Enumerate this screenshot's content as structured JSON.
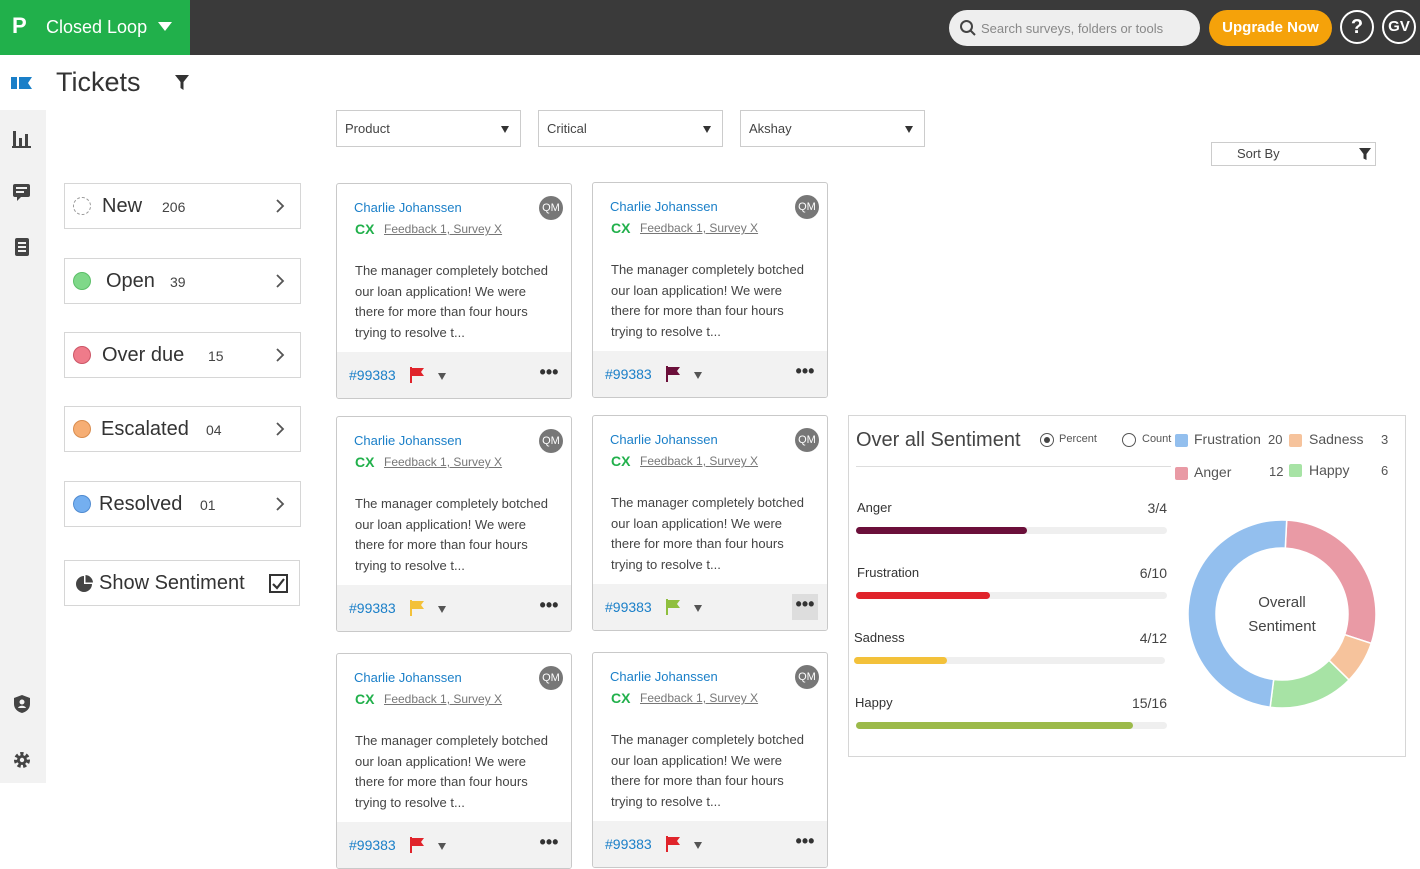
{
  "app": {
    "logo": "P",
    "name": "Closed Loop"
  },
  "search": {
    "placeholder": "Search surveys, folders or tools"
  },
  "header": {
    "upgrade_label": "Upgrade Now",
    "help_label": "?",
    "avatar_initials": "GV"
  },
  "page": {
    "title": "Tickets"
  },
  "filters": [
    {
      "value": "Product"
    },
    {
      "value": "Critical"
    },
    {
      "value": "Akshay"
    }
  ],
  "sort": {
    "label": "Sort By"
  },
  "statuses": [
    {
      "label": "New",
      "count": "206",
      "color": "#ffffff"
    },
    {
      "label": "Open",
      "count": "39",
      "color": "#7fd889"
    },
    {
      "label": "Over due",
      "count": "15",
      "color": "#ef7b8a"
    },
    {
      "label": "Escalated",
      "count": "04",
      "color": "#f6ae74"
    },
    {
      "label": "Resolved",
      "count": "01",
      "color": "#74aff0"
    }
  ],
  "show_sentiment": {
    "label": "Show Sentiment",
    "checked": true
  },
  "tickets": [
    {
      "name": "Charlie Johanssen",
      "badge": "QM",
      "channel": "CX",
      "source": "Feedback 1, Survey X",
      "body": "The manager completely botched our loan application! We were there for more than four hours trying to resolve t...",
      "id": "#99383",
      "flag_color": "#e0242b"
    },
    {
      "name": "Charlie Johanssen",
      "badge": "QM",
      "channel": "CX",
      "source": "Feedback 1, Survey X",
      "body": "The manager completely botched our loan application! We were there for more than four hours trying to resolve t...",
      "id": "#99383",
      "flag_color": "#6b0f3a"
    },
    {
      "name": "Charlie Johanssen",
      "badge": "QM",
      "channel": "CX",
      "source": "Feedback 1, Survey X",
      "body": "The manager completely botched our loan application! We were there for more than four hours trying to resolve t...",
      "id": "#99383",
      "flag_color": "#f3c13a"
    },
    {
      "name": "Charlie Johanssen",
      "badge": "QM",
      "channel": "CX",
      "source": "Feedback 1, Survey X",
      "body": "The manager completely botched our loan application! We were there for more than four hours trying to resolve t...",
      "id": "#99383",
      "flag_color": "#8fbf3e"
    },
    {
      "name": "Charlie Johanssen",
      "badge": "QM",
      "channel": "CX",
      "source": "Feedback 1, Survey X",
      "body": "The manager completely botched our loan application! We were there for more than four hours trying to resolve t...",
      "id": "#99383",
      "flag_color": "#e0242b"
    },
    {
      "name": "Charlie Johanssen",
      "badge": "QM",
      "channel": "CX",
      "source": "Feedback 1, Survey X",
      "body": "The manager completely botched our loan application! We were there for more than four hours trying to resolve t...",
      "id": "#99383",
      "flag_color": "#e0242b"
    }
  ],
  "card_more_label": "•••",
  "sentiment": {
    "title": "Over all Sentiment",
    "modes": [
      {
        "label": "Percent",
        "selected": true
      },
      {
        "label": "Count",
        "selected": false
      }
    ],
    "legend": [
      {
        "label": "Frustration",
        "value": "20",
        "color": "#93bfee"
      },
      {
        "label": "Sadness",
        "value": "3",
        "color": "#f6c39c"
      },
      {
        "label": "Anger",
        "value": "12",
        "color": "#e99aa5"
      },
      {
        "label": "Happy",
        "value": "6",
        "color": "#a7e3a5"
      }
    ],
    "bars": [
      {
        "label": "Anger",
        "ratio": "3/4",
        "fill": 0.55,
        "color": "#6b0f3a"
      },
      {
        "label": "Frustration",
        "ratio": "6/10",
        "fill": 0.43,
        "color": "#e0242b"
      },
      {
        "label": "Sadness",
        "ratio": "4/12",
        "fill": 0.3,
        "color": "#f3c13a"
      },
      {
        "label": "Happy",
        "ratio": "15/16",
        "fill": 0.89,
        "color": "#9cba4a"
      }
    ],
    "donut_center_line1": "Overall",
    "donut_center_line2": "Sentiment"
  },
  "chart_data": {
    "type": "pie",
    "categories": [
      "Frustration",
      "Anger",
      "Sadness",
      "Happy"
    ],
    "values": [
      20,
      12,
      3,
      6
    ],
    "title": "Over all Sentiment"
  }
}
